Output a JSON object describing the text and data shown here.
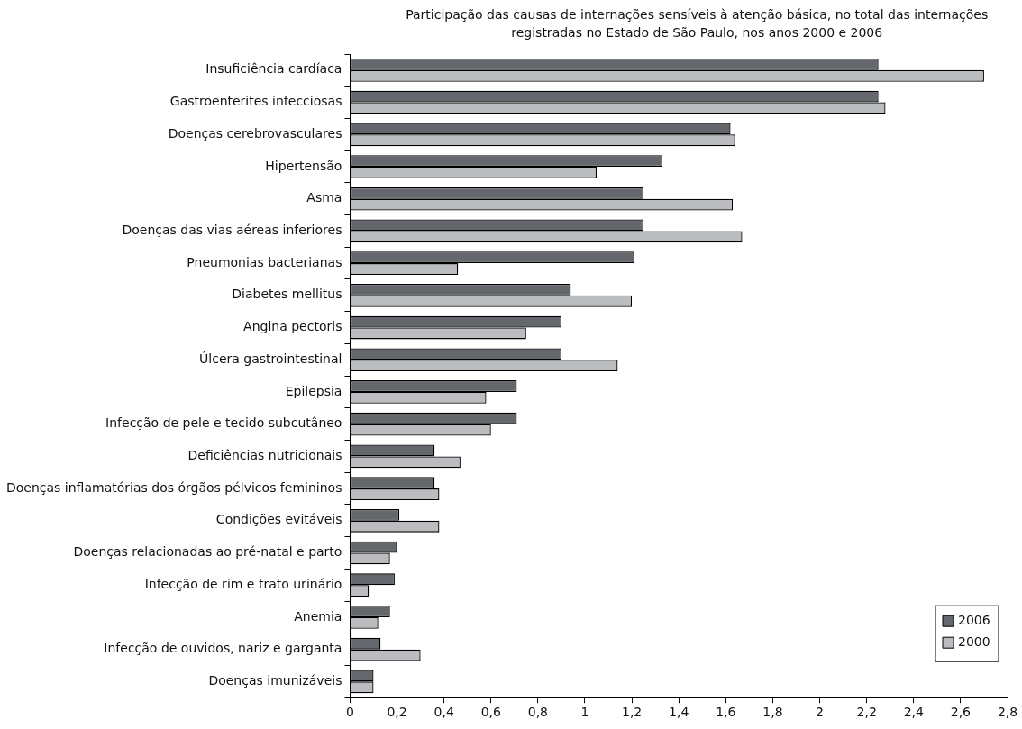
{
  "chart_data": {
    "type": "bar",
    "orientation": "horizontal",
    "title": "Participação das causas de internações sensíveis à atenção básica, no total das internações registradas no Estado de São Paulo, nos anos 2000 e 2006",
    "categories": [
      "Insuficiência cardíaca",
      "Gastroenterites infecciosas",
      "Doenças cerebrovasculares",
      "Hipertensão",
      "Asma",
      "Doenças das vias aéreas inferiores",
      "Pneumonias bacterianas",
      "Diabetes mellitus",
      "Angina pectoris",
      "Úlcera gastrointestinal",
      "Epilepsia",
      "Infecção de pele e tecido subcutâneo",
      "Deficiências nutricionais",
      "Doenças inflamatórias dos órgãos pélvicos femininos",
      "Condições evitáveis",
      "Doenças relacionadas ao pré-natal e parto",
      "Infecção de rim e trato urinário",
      "Anemia",
      "Infecção de ouvidos, nariz e garganta",
      "Doenças imunizáveis"
    ],
    "series": [
      {
        "name": "2006",
        "color": "#64676b",
        "values": [
          2.25,
          2.25,
          1.62,
          1.33,
          1.25,
          1.25,
          1.21,
          0.94,
          0.9,
          0.9,
          0.71,
          0.71,
          0.36,
          0.36,
          0.21,
          0.2,
          0.19,
          0.17,
          0.13,
          0.1
        ]
      },
      {
        "name": "2000",
        "color": "#babcc0",
        "values": [
          2.7,
          2.28,
          1.64,
          1.05,
          1.63,
          1.67,
          0.46,
          1.2,
          0.75,
          1.14,
          0.58,
          0.6,
          0.47,
          0.38,
          0.38,
          0.17,
          0.08,
          0.12,
          0.3,
          0.1
        ]
      }
    ],
    "xlim": [
      0,
      2.8
    ],
    "xticks": [
      0,
      {
        "value": 0.2,
        "label": "0,2"
      },
      {
        "value": 0.4,
        "label": "0,4"
      },
      {
        "value": 0.6,
        "label": "0,6"
      },
      {
        "value": 0.8,
        "label": "0,8"
      },
      1,
      {
        "value": 1.2,
        "label": "1,2"
      },
      {
        "value": 1.4,
        "label": "1,4"
      },
      {
        "value": 1.6,
        "label": "1,6"
      },
      {
        "value": 1.8,
        "label": "1,8"
      },
      2,
      {
        "value": 2.2,
        "label": "2,2"
      },
      {
        "value": 2.4,
        "label": "2,4"
      },
      {
        "value": 2.6,
        "label": "2,6"
      },
      {
        "value": 2.8,
        "label": "2,8"
      }
    ],
    "grid": false,
    "legend": "bottom right"
  }
}
